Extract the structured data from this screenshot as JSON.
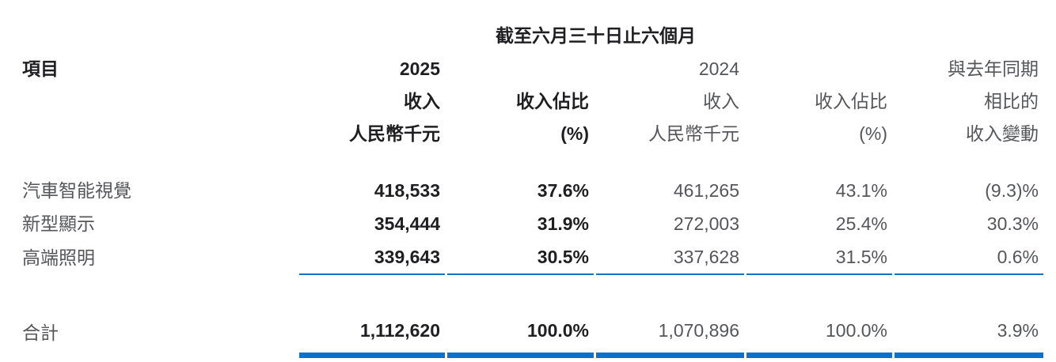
{
  "table": {
    "period_title": "截至六月三十日止六個月",
    "item_header": "項目",
    "year_headers": {
      "y2025": "2025",
      "y2024": "2024"
    },
    "col_headers": {
      "revenue_line1": "收入",
      "revenue_line2": "人民幣千元",
      "share_line1": "收入佔比",
      "share_line2": "(%)",
      "change_line1": "與去年同期",
      "change_line2": "相比的",
      "change_line3": "收入變動"
    },
    "rows": [
      {
        "item": "汽車智能視覺",
        "rev_2025": "418,533",
        "share_2025": "37.6%",
        "rev_2024": "461,265",
        "share_2024": "43.1%",
        "change": "(9.3)%"
      },
      {
        "item": "新型顯示",
        "rev_2025": "354,444",
        "share_2025": "31.9%",
        "rev_2024": "272,003",
        "share_2024": "25.4%",
        "change": "30.3%"
      },
      {
        "item": "高端照明",
        "rev_2025": "339,643",
        "share_2025": "30.5%",
        "rev_2024": "337,628",
        "share_2024": "31.5%",
        "change": "0.6%"
      }
    ],
    "total": {
      "item": "合計",
      "rev_2025": "1,112,620",
      "share_2025": "100.0%",
      "rev_2024": "1,070,896",
      "share_2024": "100.0%",
      "change": "3.9%"
    },
    "colors": {
      "rule_blue": "#0e72c6",
      "text_bold": "#1f1f22",
      "text_regular": "#55565a"
    }
  }
}
